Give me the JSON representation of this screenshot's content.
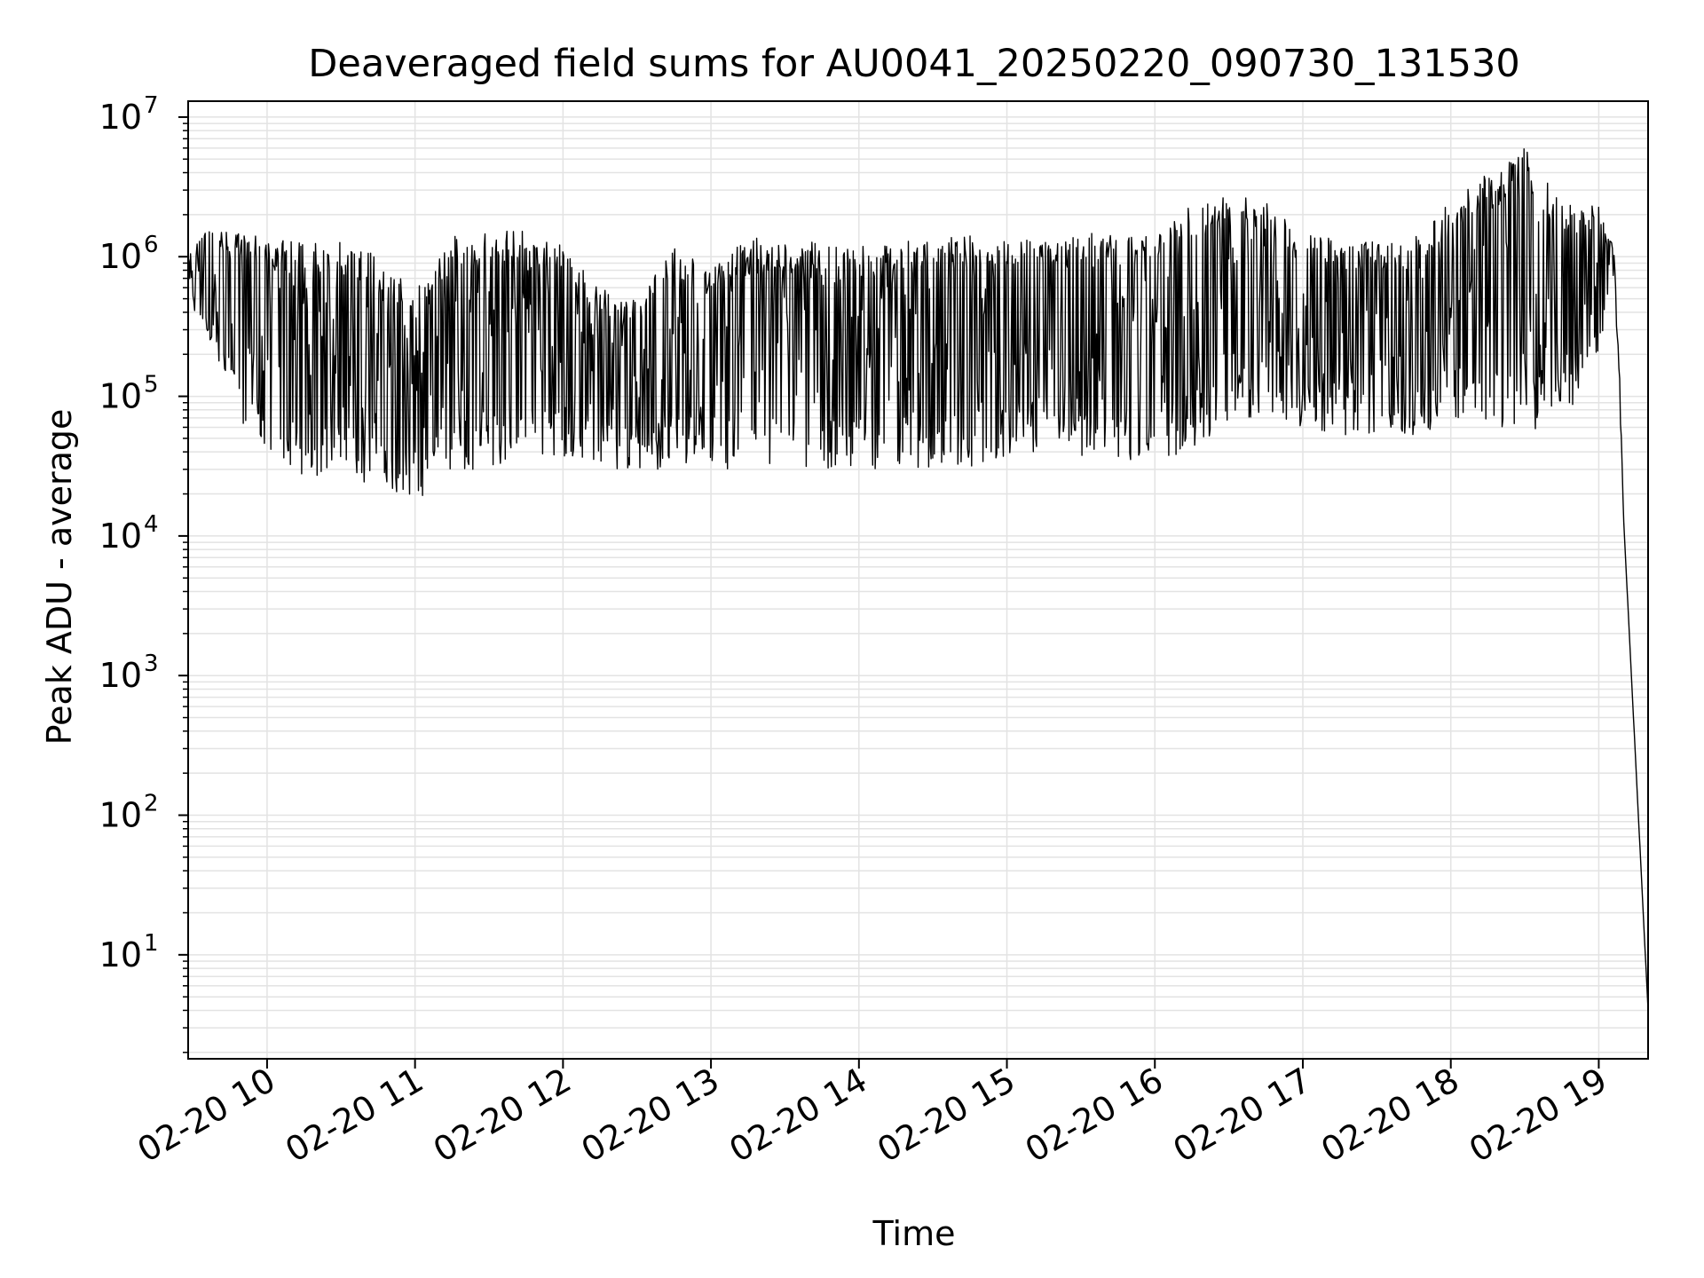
{
  "chart_data": {
    "type": "line",
    "title": "Deaveraged field sums for AU0041_20250220_090730_131530",
    "xlabel": "Time",
    "ylabel": "Peak ADU - average",
    "y_scale": "log",
    "ylim": [
      1.8,
      13000000
    ],
    "xlim": [
      "02-20 09:28",
      "02-20 19:20"
    ],
    "grid": true,
    "legend": "none",
    "line_color": "#000000",
    "grid_color": "#e3e3e3",
    "x_ticks": [
      {
        "t": "02-20 10:00",
        "label": "02-20 10"
      },
      {
        "t": "02-20 11:00",
        "label": "02-20 11"
      },
      {
        "t": "02-20 12:00",
        "label": "02-20 12"
      },
      {
        "t": "02-20 13:00",
        "label": "02-20 13"
      },
      {
        "t": "02-20 14:00",
        "label": "02-20 14"
      },
      {
        "t": "02-20 15:00",
        "label": "02-20 15"
      },
      {
        "t": "02-20 16:00",
        "label": "02-20 16"
      },
      {
        "t": "02-20 17:00",
        "label": "02-20 17"
      },
      {
        "t": "02-20 18:00",
        "label": "02-20 18"
      },
      {
        "t": "02-20 19:00",
        "label": "02-20 19"
      }
    ],
    "y_ticks": [
      {
        "value": 10,
        "base": "10",
        "exp": "1"
      },
      {
        "value": 100,
        "base": "10",
        "exp": "2"
      },
      {
        "value": 1000,
        "base": "10",
        "exp": "3"
      },
      {
        "value": 10000,
        "base": "10",
        "exp": "4"
      },
      {
        "value": 100000,
        "base": "10",
        "exp": "5"
      },
      {
        "value": 1000000,
        "base": "10",
        "exp": "6"
      },
      {
        "value": 10000000,
        "base": "10",
        "exp": "7"
      }
    ],
    "series": [
      {
        "style": "upper envelope (approximate)",
        "x": [
          "02-20 09:28",
          "02-20 09:35",
          "02-20 09:45",
          "02-20 10:00",
          "02-20 10:15",
          "02-20 10:30",
          "02-20 10:45",
          "02-20 11:00",
          "02-20 11:15",
          "02-20 11:30",
          "02-20 11:45",
          "02-20 12:00",
          "02-20 12:15",
          "02-20 12:30",
          "02-20 12:45",
          "02-20 13:00",
          "02-20 13:15",
          "02-20 13:30",
          "02-20 13:45",
          "02-20 14:00",
          "02-20 14:15",
          "02-20 14:30",
          "02-20 14:45",
          "02-20 15:00",
          "02-20 15:15",
          "02-20 15:30",
          "02-20 15:45",
          "02-20 16:00",
          "02-20 16:15",
          "02-20 16:30",
          "02-20 16:45",
          "02-20 17:00",
          "02-20 17:15",
          "02-20 17:30",
          "02-20 17:45",
          "02-20 18:00",
          "02-20 18:15",
          "02-20 18:30",
          "02-20 18:45",
          "02-20 19:00",
          "02-20 19:03",
          "02-20 19:06",
          "02-20 19:08",
          "02-20 19:10",
          "02-20 19:20"
        ],
        "y": [
          1000000,
          1800000,
          1500000,
          1400000,
          1300000,
          1300000,
          1100000,
          600000,
          1400000,
          1500000,
          1600000,
          1300000,
          600000,
          500000,
          1200000,
          800000,
          1400000,
          1300000,
          1300000,
          1200000,
          1300000,
          1400000,
          1500000,
          1500000,
          1400000,
          1500000,
          1400000,
          1400000,
          2500000,
          2800000,
          2600000,
          1500000,
          1300000,
          1300000,
          1400000,
          2500000,
          4000000,
          6000000,
          2500000,
          2300000,
          1500000,
          1200000,
          300000,
          14000,
          4
        ]
      },
      {
        "style": "lower envelope (approximate)",
        "x": [
          "02-20 09:28",
          "02-20 09:35",
          "02-20 09:45",
          "02-20 10:00",
          "02-20 10:15",
          "02-20 10:30",
          "02-20 10:45",
          "02-20 11:00",
          "02-20 11:15",
          "02-20 11:30",
          "02-20 11:45",
          "02-20 12:00",
          "02-20 12:15",
          "02-20 12:30",
          "02-20 12:45",
          "02-20 13:00",
          "02-20 13:15",
          "02-20 13:30",
          "02-20 13:45",
          "02-20 14:00",
          "02-20 14:15",
          "02-20 14:30",
          "02-20 14:45",
          "02-20 15:00",
          "02-20 15:15",
          "02-20 15:30",
          "02-20 15:45",
          "02-20 16:00",
          "02-20 16:15",
          "02-20 16:30",
          "02-20 16:45",
          "02-20 17:00",
          "02-20 17:15",
          "02-20 17:30",
          "02-20 17:45",
          "02-20 18:00",
          "02-20 18:15",
          "02-20 18:30",
          "02-20 18:45",
          "02-20 19:00",
          "02-20 19:03",
          "02-20 19:06",
          "02-20 19:08",
          "02-20 19:10",
          "02-20 19:20"
        ],
        "y": [
          450000,
          300000,
          80000,
          40000,
          25000,
          30000,
          20000,
          17000,
          30000,
          30000,
          40000,
          35000,
          30000,
          30000,
          30000,
          35000,
          25000,
          30000,
          25000,
          30000,
          30000,
          30000,
          30000,
          35000,
          40000,
          35000,
          30000,
          35000,
          40000,
          60000,
          80000,
          60000,
          50000,
          55000,
          50000,
          70000,
          60000,
          60000,
          55000,
          200000,
          400000,
          600000,
          200000,
          10000,
          4
        ]
      }
    ]
  }
}
